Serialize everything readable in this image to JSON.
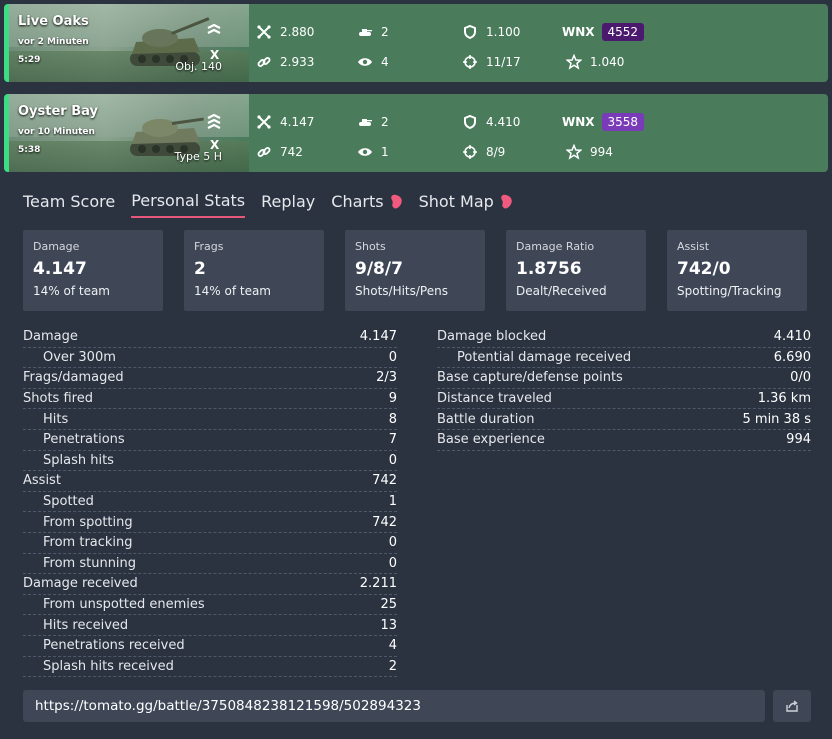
{
  "battles": [
    {
      "map": "Live Oaks",
      "ago": "vor 2 Minuten",
      "duration": "5:29",
      "tier": "X",
      "tank": "Obj. 140",
      "damage": "2.880",
      "frags": "2",
      "blocked": "1.100",
      "assist": "2.933",
      "spots": "4",
      "hits": "11/17",
      "wnx_label": "WNX",
      "wnx": "4552",
      "wnx_color": "#4b1a6e",
      "xp": "1.040"
    },
    {
      "map": "Oyster Bay",
      "ago": "vor 10 Minuten",
      "duration": "5:38",
      "tier": "X",
      "tank": "Type 5 H",
      "damage": "4.147",
      "frags": "2",
      "blocked": "4.410",
      "assist": "742",
      "spots": "1",
      "hits": "8/9",
      "wnx_label": "WNX",
      "wnx": "3558",
      "wnx_color": "#7a3bb8",
      "xp": "994"
    }
  ],
  "tabs": [
    "Team Score",
    "Personal Stats",
    "Replay",
    "Charts",
    "Shot Map"
  ],
  "cards": [
    {
      "label": "Damage",
      "value": "4.147",
      "sub": "14% of team"
    },
    {
      "label": "Frags",
      "value": "2",
      "sub": "14% of team"
    },
    {
      "label": "Shots",
      "value": "9/8/7",
      "sub": "Shots/Hits/Pens"
    },
    {
      "label": "Damage Ratio",
      "value": "1.8756",
      "sub": "Dealt/Received"
    },
    {
      "label": "Assist",
      "value": "742/0",
      "sub": "Spotting/Tracking"
    }
  ],
  "left_rows": [
    {
      "k": "Damage",
      "v": "4.147",
      "indent": false
    },
    {
      "k": "Over 300m",
      "v": "0",
      "indent": true
    },
    {
      "k": "Frags/damaged",
      "v": "2/3",
      "indent": false
    },
    {
      "k": "Shots fired",
      "v": "9",
      "indent": false
    },
    {
      "k": "Hits",
      "v": "8",
      "indent": true
    },
    {
      "k": "Penetrations",
      "v": "7",
      "indent": true
    },
    {
      "k": "Splash hits",
      "v": "0",
      "indent": true
    },
    {
      "k": "Assist",
      "v": "742",
      "indent": false
    },
    {
      "k": "Spotted",
      "v": "1",
      "indent": true
    },
    {
      "k": "From spotting",
      "v": "742",
      "indent": true
    },
    {
      "k": "From tracking",
      "v": "0",
      "indent": true
    },
    {
      "k": "From stunning",
      "v": "0",
      "indent": true
    },
    {
      "k": "Damage received",
      "v": "2.211",
      "indent": false
    },
    {
      "k": "From unspotted enemies",
      "v": "25",
      "indent": true
    },
    {
      "k": "Hits received",
      "v": "13",
      "indent": true
    },
    {
      "k": "Penetrations received",
      "v": "4",
      "indent": true
    },
    {
      "k": "Splash hits received",
      "v": "2",
      "indent": true
    }
  ],
  "right_rows": [
    {
      "k": "Damage blocked",
      "v": "4.410",
      "indent": false
    },
    {
      "k": "Potential damage received",
      "v": "6.690",
      "indent": true
    },
    {
      "k": "Base capture/defense points",
      "v": "0/0",
      "indent": false
    },
    {
      "k": "Distance traveled",
      "v": "1.36 km",
      "indent": false
    },
    {
      "k": "Battle duration",
      "v": "5 min 38 s",
      "indent": false
    },
    {
      "k": "Base experience",
      "v": "994",
      "indent": false
    }
  ],
  "url": "https://tomato.gg/battle/3750848238121598/502894323",
  "colors": {
    "accent": "#3ddc84",
    "tab_underline": "#e8577a",
    "card_bg": "#3f4757",
    "battle_bg": "#4a7c5c"
  },
  "icons": [
    "crosshair-x-icon",
    "tank-icon",
    "shield-icon",
    "chain-link-icon",
    "eye-icon",
    "target-icon",
    "star-icon",
    "share-icon"
  ]
}
